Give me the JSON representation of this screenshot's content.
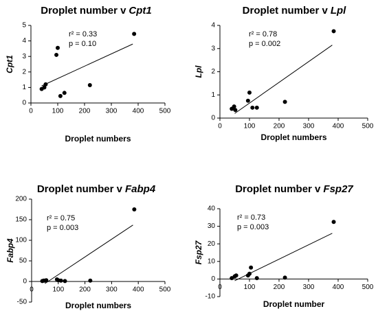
{
  "chart_data": [
    {
      "type": "scatter",
      "title": {
        "text": "Droplet number v",
        "gene": "Cpt1"
      },
      "x_label": "Droplet numbers",
      "y_label": "Cpt1",
      "annotations": [
        "r² = 0.33",
        "p = 0.10"
      ],
      "color": "#000000",
      "x": [
        40,
        50,
        55,
        95,
        100,
        110,
        125,
        220,
        385
      ],
      "values": [
        0.9,
        1.0,
        1.2,
        3.1,
        3.55,
        0.45,
        0.65,
        1.15,
        4.45
      ],
      "fit": {
        "x": [
          40,
          380
        ],
        "values": [
          1.1,
          3.8
        ]
      },
      "xlim": [
        0,
        500
      ],
      "xticks": [
        0,
        100,
        200,
        300,
        400,
        500
      ],
      "ylim": [
        0,
        5
      ],
      "yticks": [
        0,
        1,
        2,
        3,
        4,
        5
      ]
    },
    {
      "type": "scatter",
      "title": {
        "text": "Droplet number v",
        "gene": "Lpl"
      },
      "x_label": "Droplet numbers",
      "y_label": "Lpl",
      "annotations": [
        "r² = 0.78",
        "p = 0.002"
      ],
      "color": "#000000",
      "x": [
        40,
        48,
        52,
        95,
        100,
        110,
        125,
        220,
        385
      ],
      "values": [
        0.4,
        0.5,
        0.35,
        0.75,
        1.1,
        0.45,
        0.45,
        0.7,
        3.75
      ],
      "fit": {
        "x": [
          50,
          380
        ],
        "values": [
          0.2,
          3.15
        ]
      },
      "xlim": [
        0,
        500
      ],
      "xticks": [
        0,
        100,
        200,
        300,
        400,
        500
      ],
      "ylim": [
        0,
        4
      ],
      "yticks": [
        0,
        1,
        2,
        3,
        4
      ]
    },
    {
      "type": "scatter",
      "title": {
        "text": "Droplet number v",
        "gene": "Fabp4"
      },
      "x_label": "Droplet numbers",
      "y_label": "Fabp4",
      "annotations": [
        "r² = 0.75",
        "p = 0.003"
      ],
      "color": "#000000",
      "x": [
        40,
        45,
        50,
        55,
        95,
        100,
        110,
        125,
        220,
        385
      ],
      "values": [
        1,
        2,
        2,
        3,
        5,
        3,
        2,
        1,
        2,
        175
      ],
      "fit": {
        "x": [
          50,
          380
        ],
        "values": [
          -5,
          137
        ]
      },
      "xlim": [
        0,
        500
      ],
      "xticks": [
        0,
        100,
        200,
        300,
        400,
        500
      ],
      "ylim": [
        -50,
        200
      ],
      "yticks": [
        -50,
        0,
        50,
        100,
        150,
        200
      ]
    },
    {
      "type": "scatter",
      "title": {
        "text": "Droplet number v",
        "gene": "Fsp27"
      },
      "x_label": "Droplet number",
      "y_label": "Fsp27",
      "annotations": [
        "r² = 0.73",
        "p = 0.003"
      ],
      "color": "#000000",
      "x": [
        40,
        50,
        55,
        95,
        100,
        105,
        125,
        220,
        385
      ],
      "values": [
        0.5,
        1.5,
        2,
        2,
        3,
        6.5,
        0.5,
        0.8,
        32.5
      ],
      "fit": {
        "x": [
          50,
          380
        ],
        "values": [
          -1,
          26
        ]
      },
      "xlim": [
        0,
        500
      ],
      "xticks": [
        0,
        100,
        200,
        300,
        400,
        500
      ],
      "ylim": [
        -10,
        40
      ],
      "yticks": [
        -10,
        0,
        10,
        20,
        30,
        40
      ]
    }
  ]
}
